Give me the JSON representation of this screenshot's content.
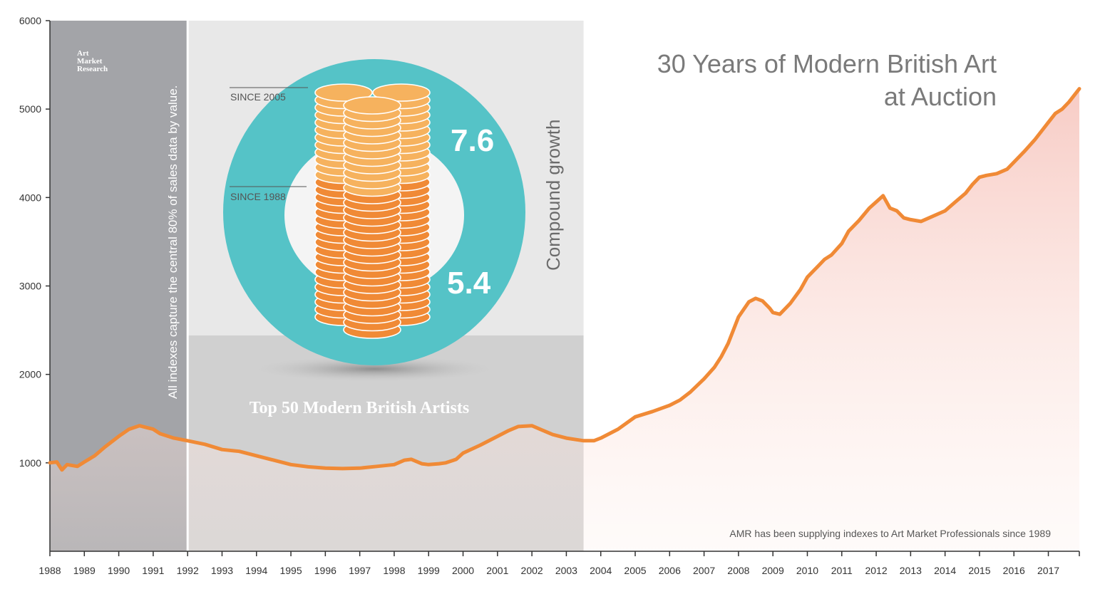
{
  "chart_data": {
    "type": "line",
    "title": "30 Years of Modern British Art at Auction",
    "title_lines": [
      "30 Years of Modern British Art",
      "at Auction"
    ],
    "xlabel": "",
    "ylabel": "",
    "ylim": [
      0,
      6000
    ],
    "xlim": [
      1988,
      2017.9
    ],
    "y_ticks": [
      1000,
      2000,
      3000,
      4000,
      5000,
      6000
    ],
    "x_ticks": [
      1988,
      1989,
      1990,
      1991,
      1992,
      1993,
      1994,
      1995,
      1996,
      1997,
      1998,
      1999,
      2000,
      2001,
      2002,
      2003,
      2004,
      2005,
      2006,
      2007,
      2008,
      2009,
      2010,
      2011,
      2012,
      2013,
      2014,
      2015,
      2016,
      2017
    ],
    "grid": false,
    "legend": "none",
    "series": [
      {
        "x": [
          1988.0,
          1988.2,
          1988.35,
          1988.5,
          1988.8,
          1989.0,
          1989.3,
          1989.6,
          1990.0,
          1990.3,
          1990.6,
          1990.8,
          1991.0,
          1991.2,
          1991.6,
          1992.0,
          1992.5,
          1993.0,
          1993.5,
          1994.0,
          1994.5,
          1995.0,
          1995.5,
          1996.0,
          1996.5,
          1997.0,
          1997.5,
          1998.0,
          1998.3,
          1998.5,
          1998.8,
          1999.0,
          1999.3,
          1999.5,
          1999.8,
          2000.0,
          2000.5,
          2001.0,
          2001.3,
          2001.6,
          2002.0,
          2002.3,
          2002.6,
          2003.0,
          2003.5,
          2003.8,
          2004.0,
          2004.5,
          2005.0,
          2005.5,
          2006.0,
          2006.3,
          2006.6,
          2007.0,
          2007.3,
          2007.5,
          2007.7,
          2008.0,
          2008.3,
          2008.5,
          2008.7,
          2008.9,
          2009.0,
          2009.2,
          2009.5,
          2009.8,
          2010.0,
          2010.3,
          2010.5,
          2010.7,
          2011.0,
          2011.2,
          2011.5,
          2011.8,
          2012.0,
          2012.2,
          2012.4,
          2012.6,
          2012.8,
          2013.0,
          2013.3,
          2013.6,
          2014.0,
          2014.3,
          2014.6,
          2014.8,
          2015.0,
          2015.2,
          2015.5,
          2015.8,
          2016.0,
          2016.3,
          2016.6,
          2016.9,
          2017.0,
          2017.2,
          2017.4,
          2017.6,
          2017.9
        ],
        "values": [
          1000,
          1010,
          920,
          980,
          960,
          1010,
          1080,
          1180,
          1300,
          1380,
          1420,
          1400,
          1380,
          1330,
          1280,
          1250,
          1210,
          1150,
          1130,
          1080,
          1030,
          980,
          955,
          940,
          935,
          940,
          960,
          980,
          1030,
          1040,
          990,
          980,
          990,
          1000,
          1040,
          1110,
          1200,
          1300,
          1360,
          1410,
          1420,
          1370,
          1320,
          1280,
          1250,
          1250,
          1280,
          1380,
          1520,
          1580,
          1650,
          1710,
          1800,
          1950,
          2080,
          2200,
          2350,
          2650,
          2820,
          2860,
          2830,
          2750,
          2700,
          2680,
          2800,
          2960,
          3100,
          3220,
          3300,
          3350,
          3480,
          3620,
          3740,
          3880,
          3950,
          4020,
          3880,
          3850,
          3770,
          3750,
          3730,
          3780,
          3850,
          3950,
          4050,
          4150,
          4230,
          4250,
          4270,
          4320,
          4400,
          4520,
          4650,
          4800,
          4850,
          4950,
          5000,
          5080,
          5230
        ]
      }
    ],
    "color": "#f08a36",
    "shaded_periods": [
      {
        "from": 1988.0,
        "to": 1992.0,
        "shade": "#a3a4a8"
      },
      {
        "from": 1992.0,
        "to": 2003.5,
        "shade": "#e8e8e8"
      }
    ]
  },
  "title": {
    "line1": "30 Years of Modern British Art",
    "line2": "at Auction"
  },
  "logo": {
    "line1": "Art",
    "line2": "Market",
    "line3": "Research"
  },
  "note": "AMR has been supplying indexes to Art Market Professionals since 1989",
  "vertical_label": "All indexes capture the central 80% of sales data by value.",
  "infographic": {
    "compound_label": "Compound growth",
    "since_2005": "SINCE 2005",
    "since_1988": "SINCE 1988",
    "growth_2005": "7.6",
    "growth_1988": "5.4",
    "subtitle": "Top 50 Modern British Artists",
    "ring_color": "#55c3c7",
    "coin_light": "#f6b25e",
    "coin_dark": "#f08a36"
  }
}
